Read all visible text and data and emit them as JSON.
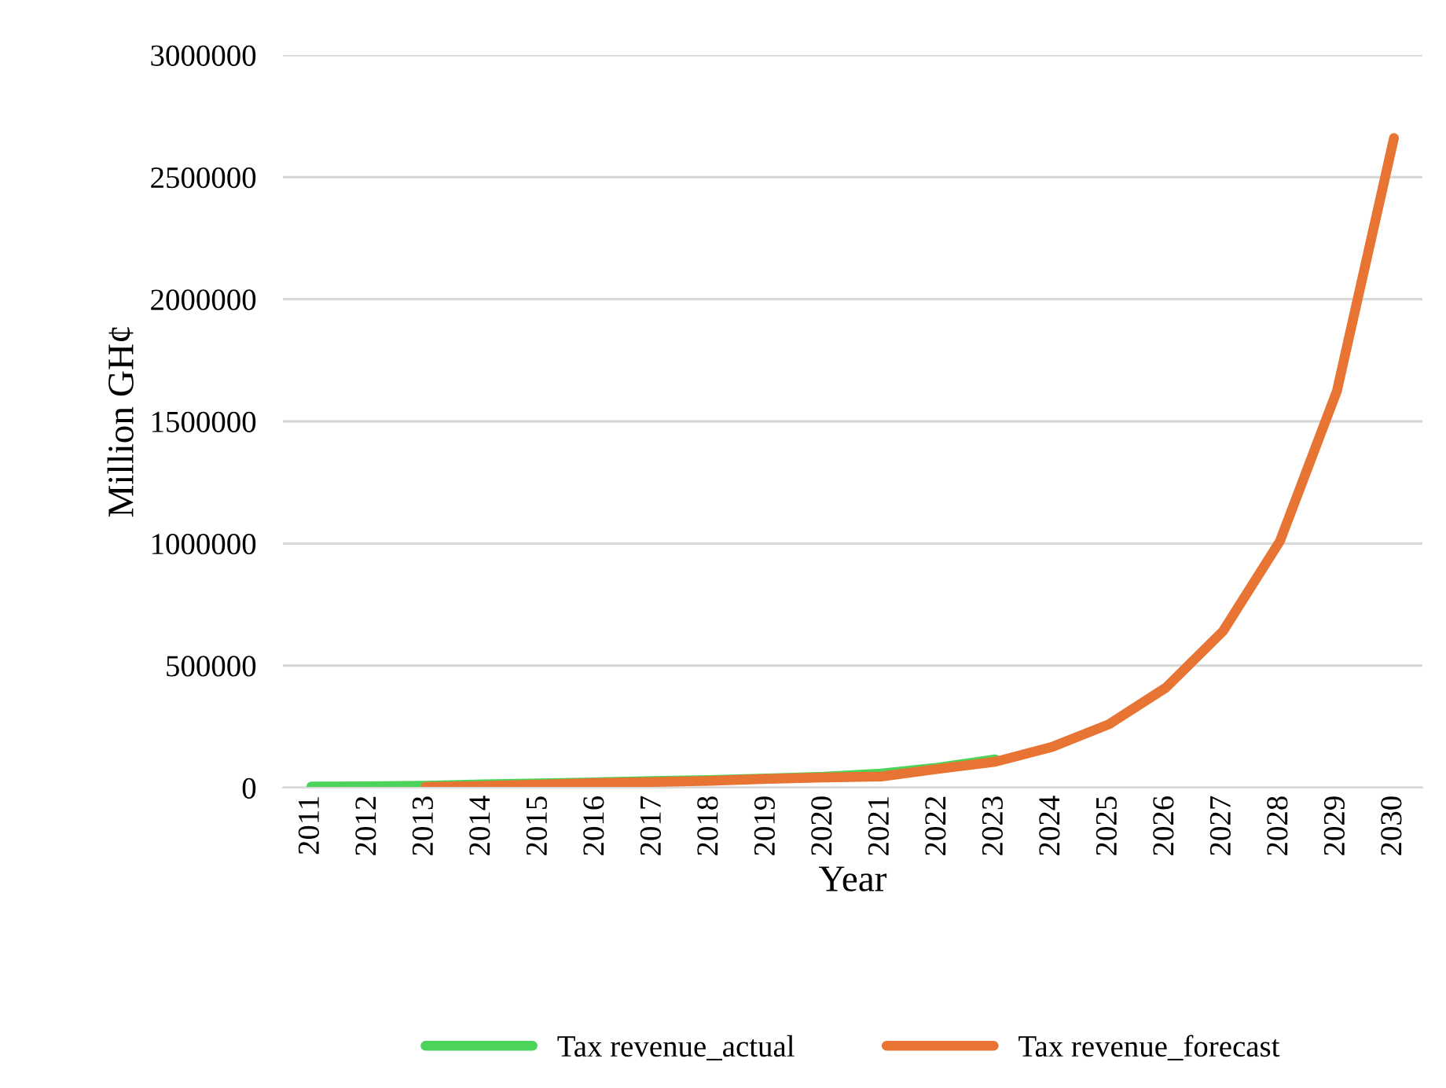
{
  "chart_data": {
    "type": "line",
    "xlabel": "Year",
    "ylabel": "Million GH¢",
    "categories": [
      "2011",
      "2012",
      "2013",
      "2014",
      "2015",
      "2016",
      "2017",
      "2018",
      "2019",
      "2020",
      "2021",
      "2022",
      "2023",
      "2024",
      "2025",
      "2026",
      "2027",
      "2028",
      "2029",
      "2030"
    ],
    "series": [
      {
        "name": "Tax revenue_actual",
        "color": "#4cd35a",
        "values": [
          5000,
          6000,
          8000,
          14000,
          18000,
          22000,
          27000,
          31000,
          38000,
          45000,
          58000,
          82000,
          116000,
          null,
          null,
          null,
          null,
          null,
          null,
          null
        ]
      },
      {
        "name": "Tax revenue_forecast",
        "color": "#e87433",
        "values": [
          null,
          null,
          3000,
          7000,
          13000,
          19000,
          23000,
          28000,
          36000,
          42000,
          46000,
          77000,
          106000,
          167000,
          260000,
          410000,
          641000,
          1010000,
          1625000,
          2660000
        ]
      }
    ],
    "ylim": [
      0,
      3000000
    ],
    "yticks": [
      0,
      500000,
      1000000,
      1500000,
      2000000,
      2500000,
      3000000
    ],
    "grid": "y",
    "legend": "bottom",
    "marker": "none",
    "line_style": "solid"
  }
}
